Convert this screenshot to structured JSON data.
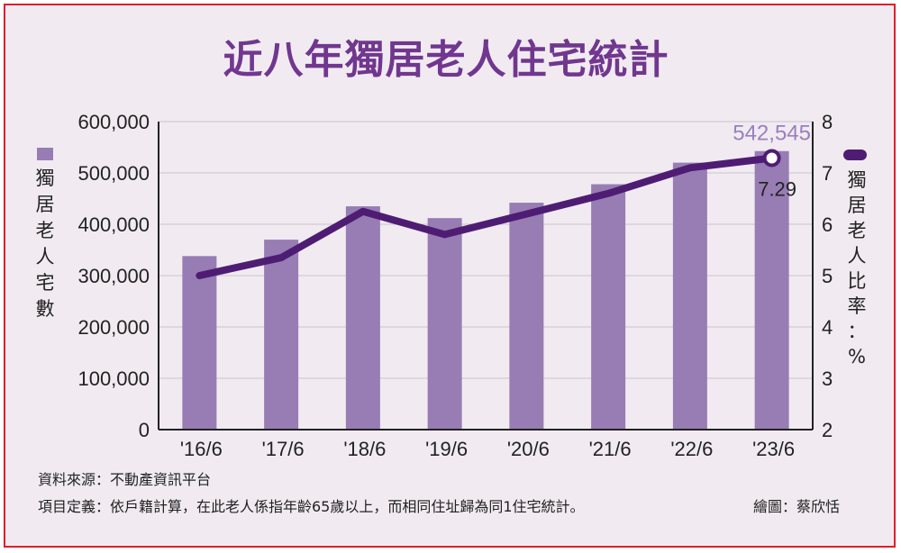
{
  "title": "近八年獨居老人住宅統計",
  "footer": {
    "source": "資料來源：不動產資訊平台",
    "definition": "項目定義：依戶籍計算，在此老人係指年齡65歲以上，而相同住址歸為同1住宅統計。",
    "credit": "繪圖：蔡欣恬"
  },
  "colors": {
    "frame": "#e01d2b",
    "background": "#f1ebf1",
    "bar": "#977db4",
    "line": "#4e1d73",
    "title": "#71378f"
  },
  "chart_data": {
    "type": "bar",
    "title": "近八年獨居老人住宅統計",
    "categories": [
      "'16/6",
      "'17/6",
      "'18/6",
      "'19/6",
      "'20/6",
      "'21/6",
      "'22/6",
      "'23/6"
    ],
    "series": [
      {
        "name": "獨居老人宅數",
        "type": "bar",
        "axis": "left",
        "values": [
          338000,
          370000,
          435000,
          412000,
          442000,
          478000,
          520000,
          542545
        ]
      },
      {
        "name": "獨居老人比率：%",
        "type": "line",
        "axis": "right",
        "values": [
          5.0,
          5.35,
          6.25,
          5.8,
          6.2,
          6.6,
          7.1,
          7.29
        ]
      }
    ],
    "ylabel": "獨居老人宅數",
    "y2label": "獨居老人比率：%",
    "ylim": [
      0,
      600000
    ],
    "y2lim": [
      2,
      8
    ],
    "yticks": [
      "0",
      "100,000",
      "200,000",
      "300,000",
      "400,000",
      "500,000",
      "600,000"
    ],
    "y2ticks": [
      "2",
      "3",
      "4",
      "5",
      "6",
      "7",
      "8"
    ],
    "annotations": {
      "last_bar_label": "542,545",
      "last_line_label": "7.29"
    },
    "grid": true,
    "legend": "vertical labels on both sides"
  }
}
